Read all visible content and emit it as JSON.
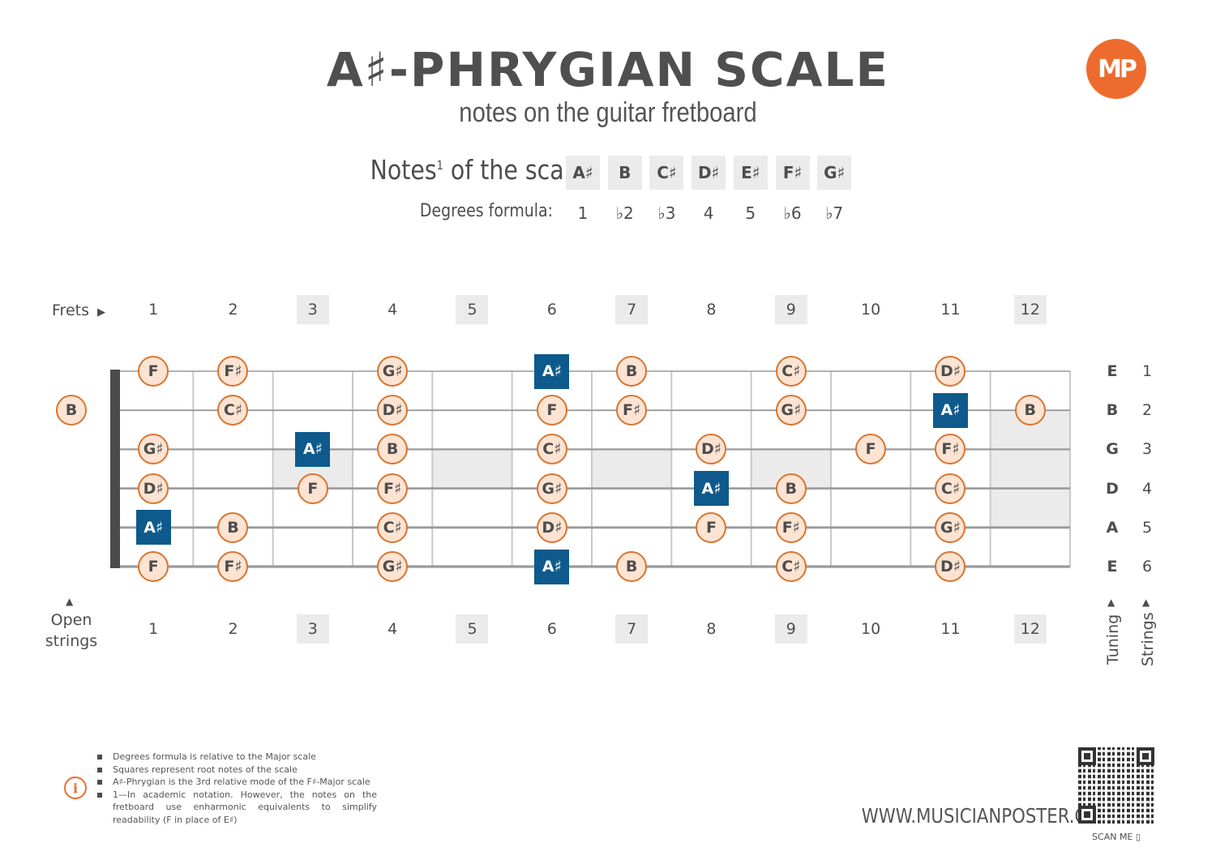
{
  "header": {
    "title": "A♯-PHRYGIAN SCALE",
    "subtitle": "notes on the guitar fretboard",
    "logo_text": "MP"
  },
  "scale": {
    "notes_label": "Notes",
    "notes_sup": "1",
    "notes_label_tail": " of the scale:",
    "degrees_label": "Degrees formula:",
    "notes": [
      "A♯",
      "B",
      "C♯",
      "D♯",
      "E♯",
      "F♯",
      "G♯"
    ],
    "degrees": [
      "1",
      "♭2",
      "♭3",
      "4",
      "5",
      "♭6",
      "♭7"
    ]
  },
  "fretboard": {
    "frets_label": "Frets",
    "open_label_1": "Open",
    "open_label_2": "strings",
    "tuning_label": "Tuning",
    "strings_label": "Strings",
    "fret_numbers": [
      "1",
      "2",
      "3",
      "4",
      "5",
      "6",
      "7",
      "8",
      "9",
      "10",
      "11",
      "12"
    ],
    "shaded_frets": [
      3,
      5,
      7,
      9,
      12
    ],
    "tuning": [
      "E",
      "B",
      "G",
      "D",
      "A",
      "E"
    ],
    "string_numbers": [
      "1",
      "2",
      "3",
      "4",
      "5",
      "6"
    ],
    "inlay_single": [
      3,
      5,
      7,
      9
    ],
    "inlay_double": [
      12
    ],
    "open_notes": [
      {
        "string": 2,
        "note": "B",
        "root": false
      }
    ],
    "positions": [
      {
        "string": 1,
        "fret": 1,
        "note": "F",
        "root": false
      },
      {
        "string": 1,
        "fret": 2,
        "note": "F♯",
        "root": false
      },
      {
        "string": 1,
        "fret": 4,
        "note": "G♯",
        "root": false
      },
      {
        "string": 1,
        "fret": 6,
        "note": "A♯",
        "root": true
      },
      {
        "string": 1,
        "fret": 7,
        "note": "B",
        "root": false
      },
      {
        "string": 1,
        "fret": 9,
        "note": "C♯",
        "root": false
      },
      {
        "string": 1,
        "fret": 11,
        "note": "D♯",
        "root": false
      },
      {
        "string": 2,
        "fret": 2,
        "note": "C♯",
        "root": false
      },
      {
        "string": 2,
        "fret": 4,
        "note": "D♯",
        "root": false
      },
      {
        "string": 2,
        "fret": 6,
        "note": "F",
        "root": false
      },
      {
        "string": 2,
        "fret": 7,
        "note": "F♯",
        "root": false
      },
      {
        "string": 2,
        "fret": 9,
        "note": "G♯",
        "root": false
      },
      {
        "string": 2,
        "fret": 11,
        "note": "A♯",
        "root": true
      },
      {
        "string": 2,
        "fret": 12,
        "note": "B",
        "root": false
      },
      {
        "string": 3,
        "fret": 1,
        "note": "G♯",
        "root": false
      },
      {
        "string": 3,
        "fret": 3,
        "note": "A♯",
        "root": true
      },
      {
        "string": 3,
        "fret": 4,
        "note": "B",
        "root": false
      },
      {
        "string": 3,
        "fret": 6,
        "note": "C♯",
        "root": false
      },
      {
        "string": 3,
        "fret": 8,
        "note": "D♯",
        "root": false
      },
      {
        "string": 3,
        "fret": 10,
        "note": "F",
        "root": false
      },
      {
        "string": 3,
        "fret": 11,
        "note": "F♯",
        "root": false
      },
      {
        "string": 4,
        "fret": 1,
        "note": "D♯",
        "root": false
      },
      {
        "string": 4,
        "fret": 3,
        "note": "F",
        "root": false
      },
      {
        "string": 4,
        "fret": 4,
        "note": "F♯",
        "root": false
      },
      {
        "string": 4,
        "fret": 6,
        "note": "G♯",
        "root": false
      },
      {
        "string": 4,
        "fret": 8,
        "note": "A♯",
        "root": true
      },
      {
        "string": 4,
        "fret": 9,
        "note": "B",
        "root": false
      },
      {
        "string": 4,
        "fret": 11,
        "note": "C♯",
        "root": false
      },
      {
        "string": 5,
        "fret": 1,
        "note": "A♯",
        "root": true
      },
      {
        "string": 5,
        "fret": 2,
        "note": "B",
        "root": false
      },
      {
        "string": 5,
        "fret": 4,
        "note": "C♯",
        "root": false
      },
      {
        "string": 5,
        "fret": 6,
        "note": "D♯",
        "root": false
      },
      {
        "string": 5,
        "fret": 8,
        "note": "F",
        "root": false
      },
      {
        "string": 5,
        "fret": 9,
        "note": "F♯",
        "root": false
      },
      {
        "string": 5,
        "fret": 11,
        "note": "G♯",
        "root": false
      },
      {
        "string": 6,
        "fret": 1,
        "note": "F",
        "root": false
      },
      {
        "string": 6,
        "fret": 2,
        "note": "F♯",
        "root": false
      },
      {
        "string": 6,
        "fret": 4,
        "note": "G♯",
        "root": false
      },
      {
        "string": 6,
        "fret": 6,
        "note": "A♯",
        "root": true
      },
      {
        "string": 6,
        "fret": 7,
        "note": "B",
        "root": false
      },
      {
        "string": 6,
        "fret": 9,
        "note": "C♯",
        "root": false
      },
      {
        "string": 6,
        "fret": 11,
        "note": "D♯",
        "root": false
      }
    ]
  },
  "footer": {
    "footnotes": [
      "Degrees formula is relative to the Major scale",
      "Squares represent root notes of the scale",
      "A♯-Phrygian is the 3rd relative mode of the F♯-Major scale",
      "1—In academic notation. However, the notes on the fretboard use enharmonic equivalents to simplify readability (F in place of E♯)"
    ],
    "info_icon": "i",
    "website": "WWW.MUSICIANPOSTER.COM",
    "scan_label": "SCAN ME"
  },
  "colors": {
    "accent": "#ed6c2d",
    "note_fill": "#fde3d2",
    "note_border": "#d9742f",
    "root_fill": "#0e5a8c",
    "shade": "#ebebeb",
    "text": "#4d4d4d"
  }
}
